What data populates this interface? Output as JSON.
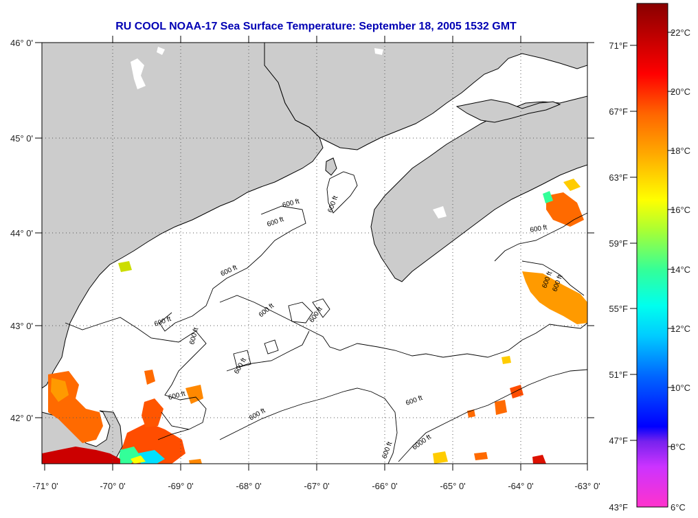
{
  "title": "RU COOL  NOAA-17  Sea Surface Temperature:  September 18, 2005 1532 GMT",
  "map": {
    "lat_labels": [
      "46° 0'",
      "45° 0'",
      "44° 0'",
      "43° 0'",
      "42° 0'"
    ],
    "lon_labels": [
      "-71° 0'",
      "-70° 0'",
      "-69° 0'",
      "-68° 0'",
      "-67° 0'",
      "-66° 0'",
      "-65° 0'",
      "-64° 0'",
      "-63° 0'"
    ],
    "contour_label": "600 ft",
    "contour_label_deep": "6000 ft",
    "colors": {
      "land": "#cccccc",
      "ocean": "#ffffff",
      "grid": "#555555",
      "coast": "#000000"
    }
  },
  "colorbar": {
    "fahrenheit_labels": [
      "71°F",
      "67°F",
      "63°F",
      "59°F",
      "55°F",
      "51°F",
      "47°F",
      "43°F"
    ],
    "celsius_labels": [
      "22°C",
      "20°C",
      "18°C",
      "16°C",
      "14°C",
      "12°C",
      "10°C",
      "8°C",
      "6°C"
    ],
    "min_c": 6,
    "max_c": 23
  }
}
